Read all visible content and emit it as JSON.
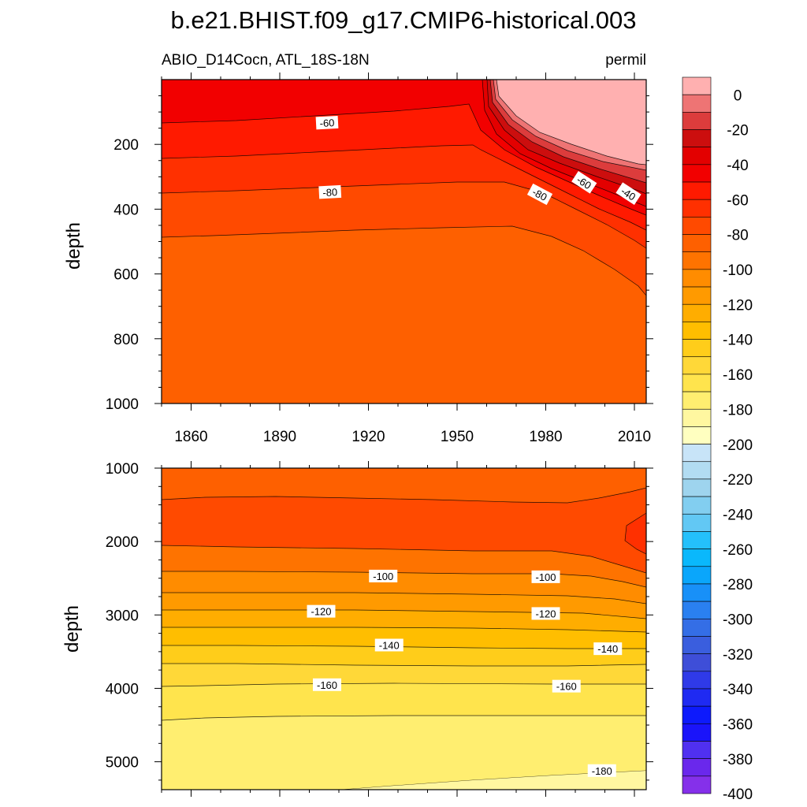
{
  "title": "b.e21.BHIST.f09_g17.CMIP6-historical.003",
  "chart_data": [
    {
      "type": "contour",
      "subtitle_left": "ABIO_D14Cocn, ATL_18S-18N",
      "subtitle_right": "permil",
      "xlabel": "",
      "ylabel": "depth",
      "xlim": [
        1850,
        2014
      ],
      "ylim": [
        1000,
        0
      ],
      "x_ticks": [
        1860,
        1890,
        1920,
        1950,
        1980,
        2010
      ],
      "x_tick_labels": [
        "1860",
        "1890",
        "1920",
        "1950",
        "1980",
        "2010"
      ],
      "y_ticks": [
        200,
        400,
        600,
        800,
        1000
      ],
      "y_tick_labels": [
        "200",
        "400",
        "600",
        "800",
        "1000"
      ],
      "contour_labels": [
        {
          "text": "-60",
          "x": 1906,
          "y": 133,
          "angle": -3
        },
        {
          "text": "-80",
          "x": 1907,
          "y": 347,
          "angle": -3
        },
        {
          "text": "-80",
          "x": 1978,
          "y": 354,
          "angle": 28
        },
        {
          "text": "-60",
          "x": 1993,
          "y": 317,
          "angle": 33
        },
        {
          "text": "-40",
          "x": 2008,
          "y": 352,
          "angle": 33
        }
      ]
    },
    {
      "type": "contour",
      "xlabel": "",
      "ylabel": "depth",
      "xlim": [
        1850,
        2014
      ],
      "ylim": [
        5380,
        1000
      ],
      "x_ticks": [
        1860,
        1890,
        1920,
        1950,
        1980,
        2010
      ],
      "y_ticks": [
        1000,
        2000,
        3000,
        4000,
        5000
      ],
      "y_tick_labels": [
        "1000",
        "2000",
        "3000",
        "4000",
        "5000"
      ],
      "contour_labels": [
        {
          "text": "-100",
          "x": 1925,
          "y": 2470,
          "angle": 0
        },
        {
          "text": "-100",
          "x": 1980,
          "y": 2480,
          "angle": 0
        },
        {
          "text": "-120",
          "x": 1904,
          "y": 2950,
          "angle": 0
        },
        {
          "text": "-120",
          "x": 1980,
          "y": 2980,
          "angle": 0
        },
        {
          "text": "-140",
          "x": 1927,
          "y": 3410,
          "angle": 0
        },
        {
          "text": "-140",
          "x": 2001,
          "y": 3460,
          "angle": 0
        },
        {
          "text": "-160",
          "x": 1906,
          "y": 3950,
          "angle": 0
        },
        {
          "text": "-160",
          "x": 1987,
          "y": 3970,
          "angle": 0
        },
        {
          "text": "-180",
          "x": 1999,
          "y": 5120,
          "angle": 0
        }
      ]
    }
  ],
  "colorbar": {
    "labels": [
      "0",
      "-20",
      "-40",
      "-60",
      "-80",
      "-100",
      "-120",
      "-140",
      "-160",
      "-180",
      "-200",
      "-220",
      "-240",
      "-260",
      "-280",
      "-300",
      "-320",
      "-340",
      "-360",
      "-380",
      "-400"
    ],
    "colors": [
      "#ffb0b0",
      "#ee7474",
      "#dc3c3c",
      "#cc0e0e",
      "#e30000",
      "#f20000",
      "#ff1a00",
      "#ff3000",
      "#ff4a00",
      "#fe6000",
      "#fe7300",
      "#ff8c00",
      "#ff9a00",
      "#ffad00",
      "#ffbe00",
      "#ffcd1a",
      "#ffd838",
      "#ffe44d",
      "#ffee70",
      "#fff7a0",
      "#ffffc0",
      "#c8e4f8",
      "#b2dcf2",
      "#9ed4ee",
      "#82cef0",
      "#62c8f4",
      "#24c0fb",
      "#0ab8fc",
      "#0aa6fb",
      "#1890f8",
      "#2a80f0",
      "#346ee6",
      "#3a5ede",
      "#3e4ed8",
      "#2f3ae8",
      "#1f2af2",
      "#0d1afc",
      "#1a14fa",
      "#5030f0",
      "#6a28ec",
      "#8530ea"
    ]
  }
}
